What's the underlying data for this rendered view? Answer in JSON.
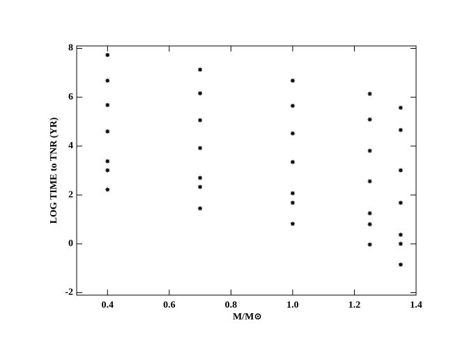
{
  "chart_data": {
    "type": "scatter",
    "xlabel": "M/M⊙",
    "ylabel": "LOG TIME to TNR (YR)",
    "xlim": [
      0.3,
      1.4
    ],
    "ylim": [
      -2.1,
      8.1
    ],
    "xticks": [
      0.4,
      0.6,
      0.8,
      {
        "value": 1,
        "label": "1.0"
      },
      1.2,
      1.4
    ],
    "yticks": [
      -2,
      0,
      2,
      4,
      6,
      8
    ],
    "color": "#000000",
    "x": [
      0.4,
      0.4,
      0.4,
      0.4,
      0.4,
      0.4,
      0.4,
      0.7,
      0.7,
      0.7,
      0.7,
      0.7,
      0.7,
      0.7,
      1.0,
      1.0,
      1.0,
      1.0,
      1.0,
      1.0,
      1.0,
      1.25,
      1.25,
      1.25,
      1.25,
      1.25,
      1.25,
      1.25,
      1.35,
      1.35,
      1.35,
      1.35,
      1.35,
      1.35,
      1.35
    ],
    "values": [
      7.73,
      6.68,
      5.68,
      4.6,
      3.38,
      3.01,
      2.22,
      7.13,
      6.16,
      5.06,
      3.92,
      2.7,
      2.33,
      1.45,
      6.68,
      5.65,
      4.52,
      3.35,
      2.07,
      1.68,
      0.82,
      6.14,
      5.09,
      3.81,
      2.56,
      1.25,
      0.8,
      -0.03,
      5.57,
      4.66,
      3.01,
      1.68,
      0.37,
      0,
      -0.85
    ]
  }
}
